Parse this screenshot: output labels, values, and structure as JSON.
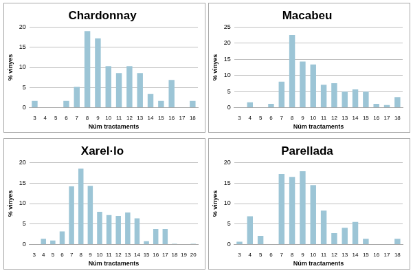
{
  "chart_data": [
    {
      "type": "bar",
      "title": "Chardonnay",
      "xlabel": "Núm tractaments",
      "ylabel": "% vinyes",
      "categories": [
        "3",
        "4",
        "5",
        "6",
        "7",
        "8",
        "9",
        "10",
        "11",
        "12",
        "13",
        "14",
        "15",
        "16",
        "17",
        "18"
      ],
      "values": [
        1.7,
        0,
        0,
        1.7,
        5.2,
        19,
        17.2,
        10.3,
        8.6,
        10.3,
        8.6,
        3.4,
        1.7,
        6.9,
        0,
        1.7
      ],
      "color": "#9cc5d6",
      "ylim": [
        0,
        20
      ],
      "yticks": [
        0,
        5,
        10,
        15,
        20
      ],
      "grid": true
    },
    {
      "type": "bar",
      "title": "Macabeu",
      "xlabel": "Núm tractaments",
      "ylabel": "% vinyes",
      "categories": [
        "3",
        "4",
        "5",
        "6",
        "7",
        "8",
        "9",
        "10",
        "11",
        "12",
        "13",
        "14",
        "15",
        "16",
        "17",
        "18"
      ],
      "values": [
        0,
        1.7,
        0,
        1.2,
        8.1,
        22.5,
        14.3,
        13.4,
        7.1,
        7.6,
        5,
        5.7,
        5,
        1.2,
        0.8,
        3.3
      ],
      "color": "#9cc5d6",
      "ylim": [
        0,
        25
      ],
      "yticks": [
        0,
        5,
        10,
        15,
        20,
        25
      ],
      "grid": true
    },
    {
      "type": "bar",
      "title": "Xarel·lo",
      "xlabel": "Núm tractaments",
      "ylabel": "% vinyes",
      "categories": [
        "3",
        "4",
        "5",
        "6",
        "7",
        "8",
        "9",
        "10",
        "11",
        "12",
        "13",
        "14",
        "15",
        "16",
        "17",
        "18",
        "19",
        "20"
      ],
      "values": [
        0,
        1.4,
        1,
        3.2,
        14.2,
        18.5,
        14.3,
        8,
        7.2,
        7,
        7.8,
        6.4,
        0.8,
        3.8,
        3.8,
        0.2,
        0,
        0.2
      ],
      "color": "#9cc5d6",
      "ylim": [
        0,
        20
      ],
      "yticks": [
        0,
        5,
        10,
        15,
        20
      ],
      "grid": true
    },
    {
      "type": "bar",
      "title": "Parellada",
      "xlabel": "Núm tractaments",
      "ylabel": "% vinyes",
      "categories": [
        "3",
        "4",
        "5",
        "6",
        "7",
        "8",
        "9",
        "10",
        "11",
        "12",
        "13",
        "14",
        "15",
        "16",
        "17",
        "18"
      ],
      "values": [
        0.7,
        6.9,
        2.1,
        0,
        17.2,
        16.5,
        17.9,
        14.5,
        8.3,
        2.8,
        4.1,
        5.5,
        1.4,
        0,
        0,
        1.4
      ],
      "color": "#9cc5d6",
      "ylim": [
        0,
        20
      ],
      "yticks": [
        0,
        5,
        10,
        15,
        20
      ],
      "grid": true
    }
  ]
}
